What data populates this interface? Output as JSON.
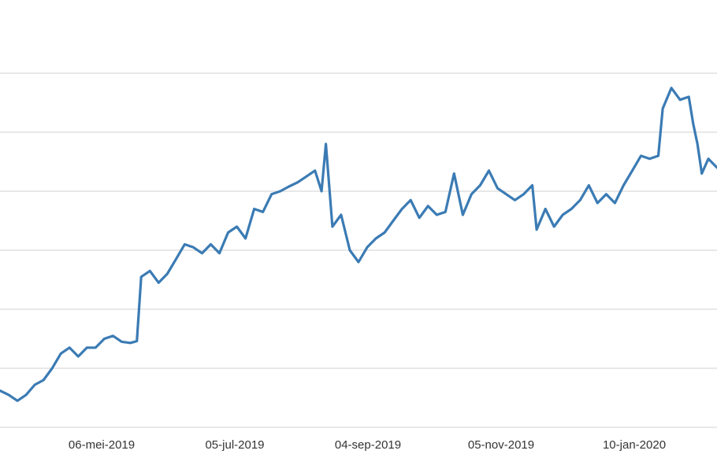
{
  "chart_data": {
    "type": "line",
    "title": "",
    "xlabel": "",
    "ylabel": "",
    "x_tick_labels": [
      "06-mei-2019",
      "05-jul-2019",
      "04-sep-2019",
      "05-nov-2019",
      "10-jan-2020"
    ],
    "x_range": [
      "2019-03-14",
      "2020-02-07"
    ],
    "y_axis": "no tick labels visible; values below are relative (0 = bottom gridline, 6 = top gridline)",
    "ylim": [
      0,
      6
    ],
    "gridlines": 7,
    "legend": "none",
    "series": [
      {
        "color": "#3b7bb4",
        "points": [
          [
            "2019-03-14",
            0.62
          ],
          [
            "2019-03-18",
            0.55
          ],
          [
            "2019-03-22",
            0.45
          ],
          [
            "2019-03-26",
            0.55
          ],
          [
            "2019-03-30",
            0.72
          ],
          [
            "2019-04-03",
            0.8
          ],
          [
            "2019-04-07",
            1.0
          ],
          [
            "2019-04-11",
            1.25
          ],
          [
            "2019-04-15",
            1.35
          ],
          [
            "2019-04-19",
            1.2
          ],
          [
            "2019-04-23",
            1.35
          ],
          [
            "2019-04-27",
            1.35
          ],
          [
            "2019-05-01",
            1.5
          ],
          [
            "2019-05-05",
            1.55
          ],
          [
            "2019-05-09",
            1.45
          ],
          [
            "2019-05-13",
            1.43
          ],
          [
            "2019-05-16",
            1.46
          ],
          [
            "2019-05-18",
            2.55
          ],
          [
            "2019-05-22",
            2.65
          ],
          [
            "2019-05-26",
            2.45
          ],
          [
            "2019-05-30",
            2.6
          ],
          [
            "2019-06-03",
            2.85
          ],
          [
            "2019-06-07",
            3.1
          ],
          [
            "2019-06-11",
            3.05
          ],
          [
            "2019-06-15",
            2.95
          ],
          [
            "2019-06-19",
            3.1
          ],
          [
            "2019-06-23",
            2.95
          ],
          [
            "2019-06-27",
            3.3
          ],
          [
            "2019-07-01",
            3.4
          ],
          [
            "2019-07-05",
            3.2
          ],
          [
            "2019-07-09",
            3.7
          ],
          [
            "2019-07-13",
            3.65
          ],
          [
            "2019-07-17",
            3.95
          ],
          [
            "2019-07-21",
            4.0
          ],
          [
            "2019-07-25",
            4.08
          ],
          [
            "2019-07-29",
            4.15
          ],
          [
            "2019-08-02",
            4.25
          ],
          [
            "2019-08-06",
            4.35
          ],
          [
            "2019-08-09",
            4.0
          ],
          [
            "2019-08-11",
            4.8
          ],
          [
            "2019-08-14",
            3.4
          ],
          [
            "2019-08-18",
            3.6
          ],
          [
            "2019-08-22",
            3.0
          ],
          [
            "2019-08-26",
            2.8
          ],
          [
            "2019-08-30",
            3.05
          ],
          [
            "2019-09-03",
            3.2
          ],
          [
            "2019-09-07",
            3.3
          ],
          [
            "2019-09-11",
            3.5
          ],
          [
            "2019-09-15",
            3.7
          ],
          [
            "2019-09-19",
            3.85
          ],
          [
            "2019-09-23",
            3.55
          ],
          [
            "2019-09-27",
            3.75
          ],
          [
            "2019-10-01",
            3.6
          ],
          [
            "2019-10-05",
            3.65
          ],
          [
            "2019-10-09",
            4.3
          ],
          [
            "2019-10-13",
            3.6
          ],
          [
            "2019-10-17",
            3.95
          ],
          [
            "2019-10-21",
            4.1
          ],
          [
            "2019-10-25",
            4.35
          ],
          [
            "2019-10-29",
            4.05
          ],
          [
            "2019-11-02",
            3.95
          ],
          [
            "2019-11-06",
            3.85
          ],
          [
            "2019-11-10",
            3.95
          ],
          [
            "2019-11-14",
            4.1
          ],
          [
            "2019-11-16",
            3.35
          ],
          [
            "2019-11-20",
            3.7
          ],
          [
            "2019-11-24",
            3.4
          ],
          [
            "2019-11-28",
            3.6
          ],
          [
            "2019-12-02",
            3.7
          ],
          [
            "2019-12-06",
            3.85
          ],
          [
            "2019-12-10",
            4.1
          ],
          [
            "2019-12-14",
            3.8
          ],
          [
            "2019-12-18",
            3.95
          ],
          [
            "2019-12-22",
            3.8
          ],
          [
            "2019-12-26",
            4.1
          ],
          [
            "2019-12-30",
            4.35
          ],
          [
            "2020-01-03",
            4.6
          ],
          [
            "2020-01-07",
            4.55
          ],
          [
            "2020-01-11",
            4.6
          ],
          [
            "2020-01-13",
            5.4
          ],
          [
            "2020-01-17",
            5.75
          ],
          [
            "2020-01-21",
            5.55
          ],
          [
            "2020-01-25",
            5.6
          ],
          [
            "2020-01-27",
            5.15
          ],
          [
            "2020-01-29",
            4.8
          ],
          [
            "2020-01-31",
            4.3
          ],
          [
            "2020-02-03",
            4.55
          ],
          [
            "2020-02-07",
            4.4
          ]
        ]
      }
    ]
  }
}
